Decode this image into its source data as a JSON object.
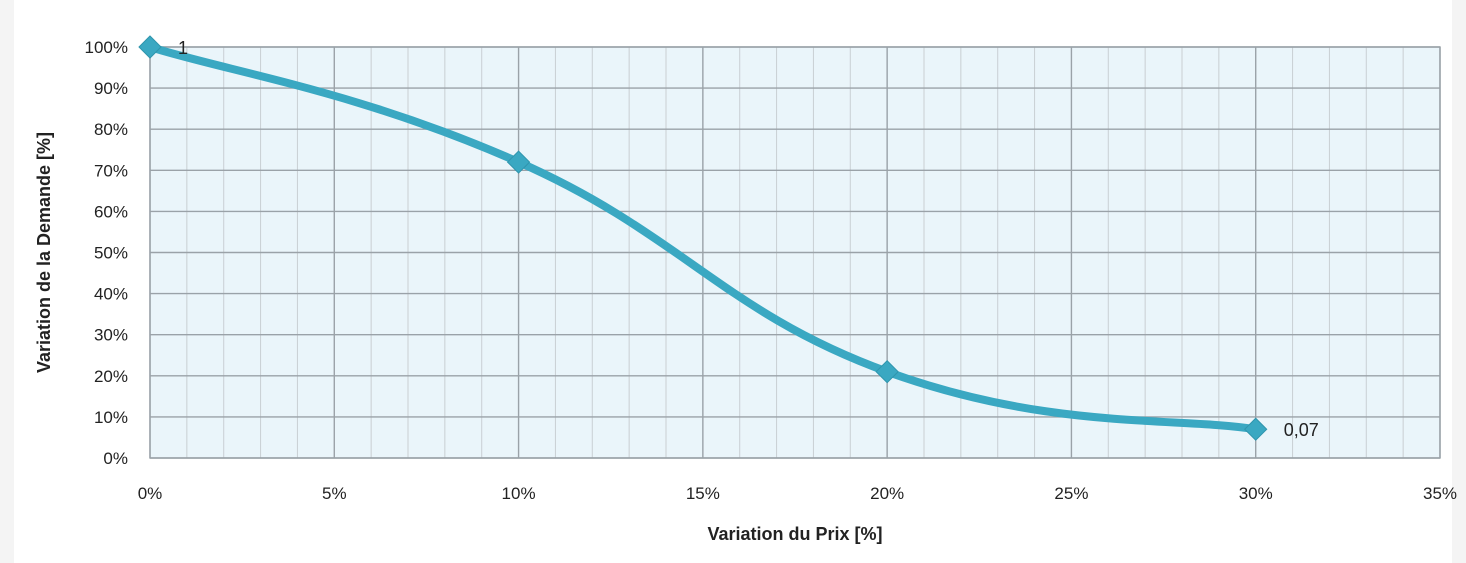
{
  "chart_data": {
    "type": "line",
    "xlabel": "Variation du Prix [%]",
    "ylabel": "Variation de la Demande [%]",
    "xlim": [
      0,
      35
    ],
    "ylim": [
      0,
      100
    ],
    "x_ticks": [
      "0%",
      "5%",
      "10%",
      "15%",
      "20%",
      "25%",
      "30%",
      "35%"
    ],
    "y_ticks": [
      "0%",
      "10%",
      "20%",
      "30%",
      "40%",
      "50%",
      "60%",
      "70%",
      "80%",
      "90%",
      "100%"
    ],
    "grid": true,
    "series": [
      {
        "x": [
          0,
          10,
          20,
          30
        ],
        "y": [
          100,
          72,
          21,
          7
        ],
        "data_labels": [
          "1",
          "",
          "",
          "0,07"
        ]
      }
    ],
    "colors": {
      "line": "#3aa8c2",
      "marker": "#3aa8c2",
      "plot_bg": "#eaf5fa",
      "grid": "#c9cfd3",
      "grid_major": "#9aa2a8"
    }
  }
}
